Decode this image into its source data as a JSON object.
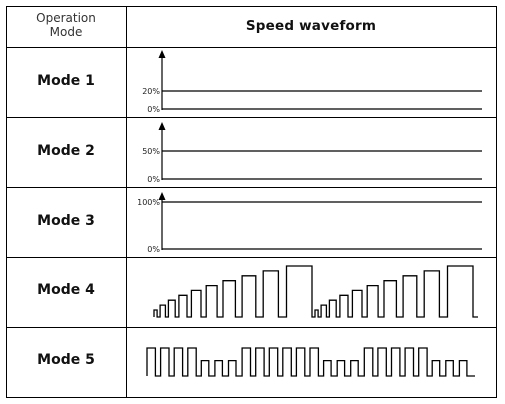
{
  "header": {
    "col1_line1": "Operation",
    "col1_line2": "Mode",
    "col2": "Speed waveform"
  },
  "modes": [
    {
      "label": "Mode 1",
      "type": "constant",
      "levels": [
        "20%",
        "0%"
      ],
      "level_value": 20
    },
    {
      "label": "Mode 2",
      "type": "constant",
      "levels": [
        "50%",
        "0%"
      ],
      "level_value": 50
    },
    {
      "label": "Mode 3",
      "type": "constant",
      "levels": [
        "100%",
        "0%"
      ],
      "level_value": 100
    },
    {
      "label": "Mode 4",
      "type": "staircase-pulses",
      "pulse_levels": [
        1,
        2,
        3,
        4,
        5,
        6,
        7,
        8,
        9,
        10,
        1,
        2,
        3,
        4,
        5,
        6,
        7,
        8,
        9,
        10
      ]
    },
    {
      "label": "Mode 5",
      "type": "square-pulses",
      "pulse_levels": [
        1,
        1,
        1,
        1,
        0.55,
        0.55,
        0.55,
        1,
        1,
        1,
        1,
        1,
        1,
        0.55,
        0.55,
        0.55,
        1,
        1,
        1,
        1,
        1,
        0.55,
        0.55,
        0.55
      ]
    }
  ],
  "colors": {
    "line": "#111111",
    "grid": "#000000"
  }
}
